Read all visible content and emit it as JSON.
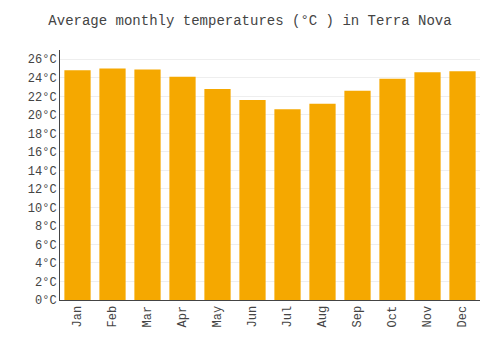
{
  "chart_data": {
    "type": "bar",
    "title": "Average monthly temperatures (°C ) in Terra Nova",
    "categories": [
      "Jan",
      "Feb",
      "Mar",
      "Apr",
      "May",
      "Jun",
      "Jul",
      "Aug",
      "Sep",
      "Oct",
      "Nov",
      "Dec"
    ],
    "values": [
      24.8,
      25.0,
      24.9,
      24.1,
      22.8,
      21.6,
      20.6,
      21.2,
      22.6,
      23.9,
      24.6,
      24.7
    ],
    "color": "#F5A800",
    "ylim": [
      0,
      27
    ],
    "yticks": [
      {
        "value": 0,
        "label": "0°C"
      },
      {
        "value": 2,
        "label": "2°C"
      },
      {
        "value": 4,
        "label": "4°C"
      },
      {
        "value": 6,
        "label": "6°C"
      },
      {
        "value": 8,
        "label": "8°C"
      },
      {
        "value": 10,
        "label": "10°C"
      },
      {
        "value": 12,
        "label": "12°C"
      },
      {
        "value": 14,
        "label": "14°C"
      },
      {
        "value": 16,
        "label": "16°C"
      },
      {
        "value": 18,
        "label": "18°C"
      },
      {
        "value": 20,
        "label": "20°C"
      },
      {
        "value": 22,
        "label": "22°C"
      },
      {
        "value": 24,
        "label": "24°C"
      },
      {
        "value": 26,
        "label": "26°C"
      }
    ],
    "grid": true
  }
}
